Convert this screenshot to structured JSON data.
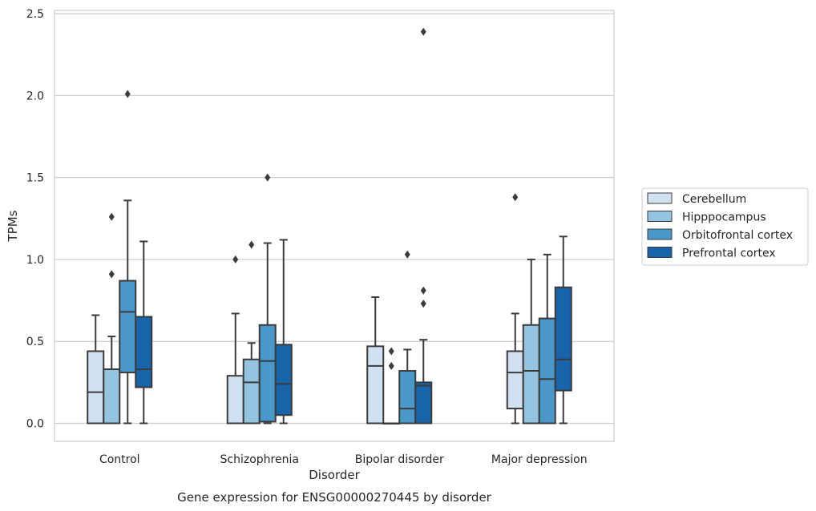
{
  "chart_data": {
    "type": "box",
    "title": "Gene expression for ENSG00000270445 by disorder",
    "xlabel": "Disorder",
    "ylabel": "TPMs",
    "ylim": [
      -0.11,
      2.52
    ],
    "yticks": [
      "0.0",
      "0.5",
      "1.0",
      "1.5",
      "2.0",
      "2.5"
    ],
    "categories": [
      "Control",
      "Schizophrenia",
      "Bipolar disorder",
      "Major depression"
    ],
    "grid": true,
    "legend_position": "right",
    "series": [
      {
        "name": "Cerebellum",
        "color": "#d0e1f2"
      },
      {
        "name": "Hipppocampus",
        "color": "#94c4df"
      },
      {
        "name": "Orbitofrontal cortex",
        "color": "#4a98c9"
      },
      {
        "name": "Prefrontal cortex",
        "color": "#1764ab"
      }
    ],
    "boxes": [
      [
        {
          "whislo": 0.0,
          "q1": 0.0,
          "med": 0.19,
          "q3": 0.44,
          "whishi": 0.66,
          "fliers": []
        },
        {
          "whislo": 0.0,
          "q1": 0.0,
          "med": 0.33,
          "q3": 0.33,
          "whishi": 0.53,
          "fliers": [
            0.91,
            1.26
          ]
        },
        {
          "whislo": 0.0,
          "q1": 0.31,
          "med": 0.68,
          "q3": 0.87,
          "whishi": 1.36,
          "fliers": [
            2.01
          ]
        },
        {
          "whislo": 0.0,
          "q1": 0.22,
          "med": 0.33,
          "q3": 0.65,
          "whishi": 1.11,
          "fliers": []
        }
      ],
      [
        {
          "whislo": 0.0,
          "q1": 0.0,
          "med": 0.0,
          "q3": 0.29,
          "whishi": 0.67,
          "fliers": [
            1.0
          ]
        },
        {
          "whislo": 0.0,
          "q1": 0.0,
          "med": 0.25,
          "q3": 0.39,
          "whishi": 0.49,
          "fliers": [
            1.09
          ]
        },
        {
          "whislo": 0.0,
          "q1": 0.01,
          "med": 0.38,
          "q3": 0.6,
          "whishi": 1.1,
          "fliers": [
            1.5
          ]
        },
        {
          "whislo": 0.0,
          "q1": 0.05,
          "med": 0.24,
          "q3": 0.48,
          "whishi": 1.12,
          "fliers": []
        }
      ],
      [
        {
          "whislo": 0.0,
          "q1": 0.0,
          "med": 0.35,
          "q3": 0.47,
          "whishi": 0.77,
          "fliers": []
        },
        {
          "whislo": 0.0,
          "q1": 0.0,
          "med": 0.0,
          "q3": 0.0,
          "whishi": 0.0,
          "fliers": [
            0.35,
            0.44
          ]
        },
        {
          "whislo": 0.0,
          "q1": 0.0,
          "med": 0.09,
          "q3": 0.32,
          "whishi": 0.45,
          "fliers": [
            1.03
          ]
        },
        {
          "whislo": 0.0,
          "q1": 0.0,
          "med": 0.23,
          "q3": 0.25,
          "whishi": 0.51,
          "fliers": [
            0.73,
            0.81,
            2.39
          ]
        }
      ],
      [
        {
          "whislo": 0.0,
          "q1": 0.09,
          "med": 0.31,
          "q3": 0.44,
          "whishi": 0.67,
          "fliers": [
            1.38
          ]
        },
        {
          "whislo": 0.0,
          "q1": 0.0,
          "med": 0.32,
          "q3": 0.6,
          "whishi": 1.0,
          "fliers": []
        },
        {
          "whislo": 0.0,
          "q1": 0.0,
          "med": 0.27,
          "q3": 0.64,
          "whishi": 1.03,
          "fliers": []
        },
        {
          "whislo": 0.0,
          "q1": 0.2,
          "med": 0.39,
          "q3": 0.83,
          "whishi": 1.14,
          "fliers": []
        }
      ]
    ]
  }
}
